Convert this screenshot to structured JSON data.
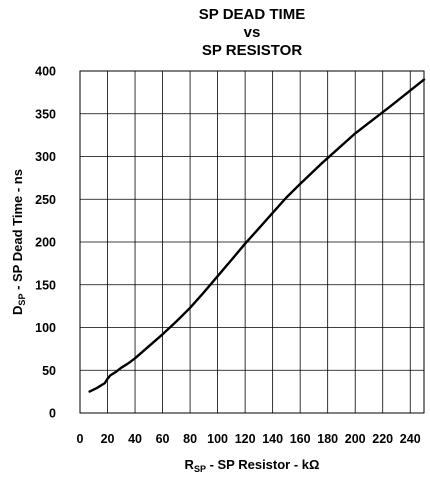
{
  "chart_data": {
    "type": "line",
    "title_lines": [
      "SP DEAD TIME",
      "vs",
      "SP RESISTOR"
    ],
    "xlabel": {
      "main": "R",
      "sub": "SP",
      "rest": " - SP Resistor - kΩ"
    },
    "ylabel": {
      "main": "D",
      "sub": "SP",
      "rest": " - SP Dead Time - ns"
    },
    "xlim": [
      0,
      250
    ],
    "ylim": [
      0,
      400
    ],
    "x_ticks": [
      0,
      20,
      40,
      60,
      80,
      100,
      120,
      140,
      160,
      180,
      200,
      220,
      240
    ],
    "y_ticks": [
      0,
      50,
      100,
      150,
      200,
      250,
      300,
      350,
      400
    ],
    "x_grid_step": 20,
    "y_grid_step": 50,
    "grid": true,
    "series": [
      {
        "color": "#000000",
        "x": [
          7,
          12,
          18,
          20,
          22,
          26,
          30,
          35,
          40,
          50,
          60,
          70,
          80,
          90,
          100,
          110,
          120,
          130,
          140,
          150,
          160,
          175,
          200,
          225,
          250
        ],
        "y": [
          25,
          29,
          35,
          40,
          44,
          48,
          53,
          58,
          64,
          78,
          92,
          107,
          123,
          141,
          160,
          179,
          198,
          216,
          234,
          252,
          268,
          291,
          327,
          358,
          390
        ]
      }
    ]
  }
}
